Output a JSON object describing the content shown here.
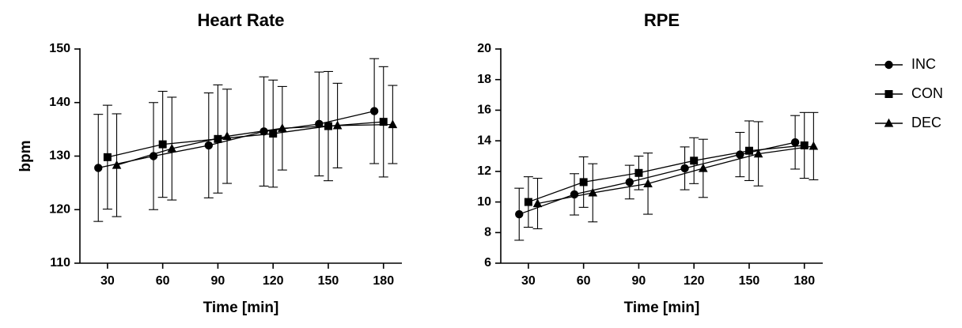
{
  "chart_data": [
    {
      "type": "line",
      "title": "Heart Rate",
      "xlabel": "Time [min]",
      "ylabel": "bpm",
      "ylim": [
        110,
        150
      ],
      "yticks": [
        110,
        120,
        130,
        140,
        150
      ],
      "xlim": [
        15,
        190
      ],
      "xticks": [
        30,
        60,
        90,
        120,
        150,
        180
      ],
      "grid": false,
      "series": [
        {
          "name": "INC",
          "marker": "circle",
          "x": [
            25,
            55,
            85,
            115,
            145,
            175
          ],
          "y": [
            127.8,
            130.0,
            132.0,
            134.6,
            136.0,
            138.4
          ],
          "err": [
            10.0,
            10.0,
            9.8,
            10.2,
            9.7,
            9.8
          ]
        },
        {
          "name": "CON",
          "marker": "square",
          "x": [
            30,
            60,
            90,
            120,
            150,
            180
          ],
          "y": [
            129.8,
            132.2,
            133.2,
            134.2,
            135.6,
            136.4
          ],
          "err": [
            9.7,
            9.9,
            10.1,
            10.0,
            10.2,
            10.3
          ]
        },
        {
          "name": "DEC",
          "marker": "triangle",
          "x": [
            35,
            65,
            95,
            125,
            155,
            185
          ],
          "y": [
            128.3,
            131.4,
            133.7,
            135.2,
            135.7,
            135.9
          ],
          "err": [
            9.6,
            9.6,
            8.8,
            7.8,
            7.9,
            7.3
          ]
        }
      ]
    },
    {
      "type": "line",
      "title": "RPE",
      "xlabel": "Time [min]",
      "ylabel": "",
      "ylim": [
        6,
        20
      ],
      "yticks": [
        6,
        8,
        10,
        12,
        14,
        16,
        18,
        20
      ],
      "xlim": [
        15,
        190
      ],
      "xticks": [
        30,
        60,
        90,
        120,
        150,
        180
      ],
      "grid": false,
      "series": [
        {
          "name": "INC",
          "marker": "circle",
          "x": [
            25,
            55,
            85,
            115,
            145,
            175
          ],
          "y": [
            9.2,
            10.5,
            11.3,
            12.2,
            13.1,
            13.9
          ],
          "err": [
            1.7,
            1.35,
            1.1,
            1.4,
            1.45,
            1.75
          ]
        },
        {
          "name": "CON",
          "marker": "square",
          "x": [
            30,
            60,
            90,
            120,
            150,
            180
          ],
          "y": [
            10.0,
            11.3,
            11.9,
            12.7,
            13.35,
            13.7
          ],
          "err": [
            1.65,
            1.65,
            1.1,
            1.5,
            1.95,
            2.15
          ]
        },
        {
          "name": "DEC",
          "marker": "triangle",
          "x": [
            35,
            65,
            95,
            125,
            155,
            185
          ],
          "y": [
            9.9,
            10.6,
            11.2,
            12.2,
            13.15,
            13.65
          ],
          "err": [
            1.65,
            1.9,
            2.0,
            1.9,
            2.1,
            2.2
          ]
        }
      ]
    }
  ],
  "legend": {
    "placement": "right",
    "entries": [
      {
        "name": "INC",
        "marker": "circle"
      },
      {
        "name": "CON",
        "marker": "square"
      },
      {
        "name": "DEC",
        "marker": "triangle"
      }
    ]
  }
}
